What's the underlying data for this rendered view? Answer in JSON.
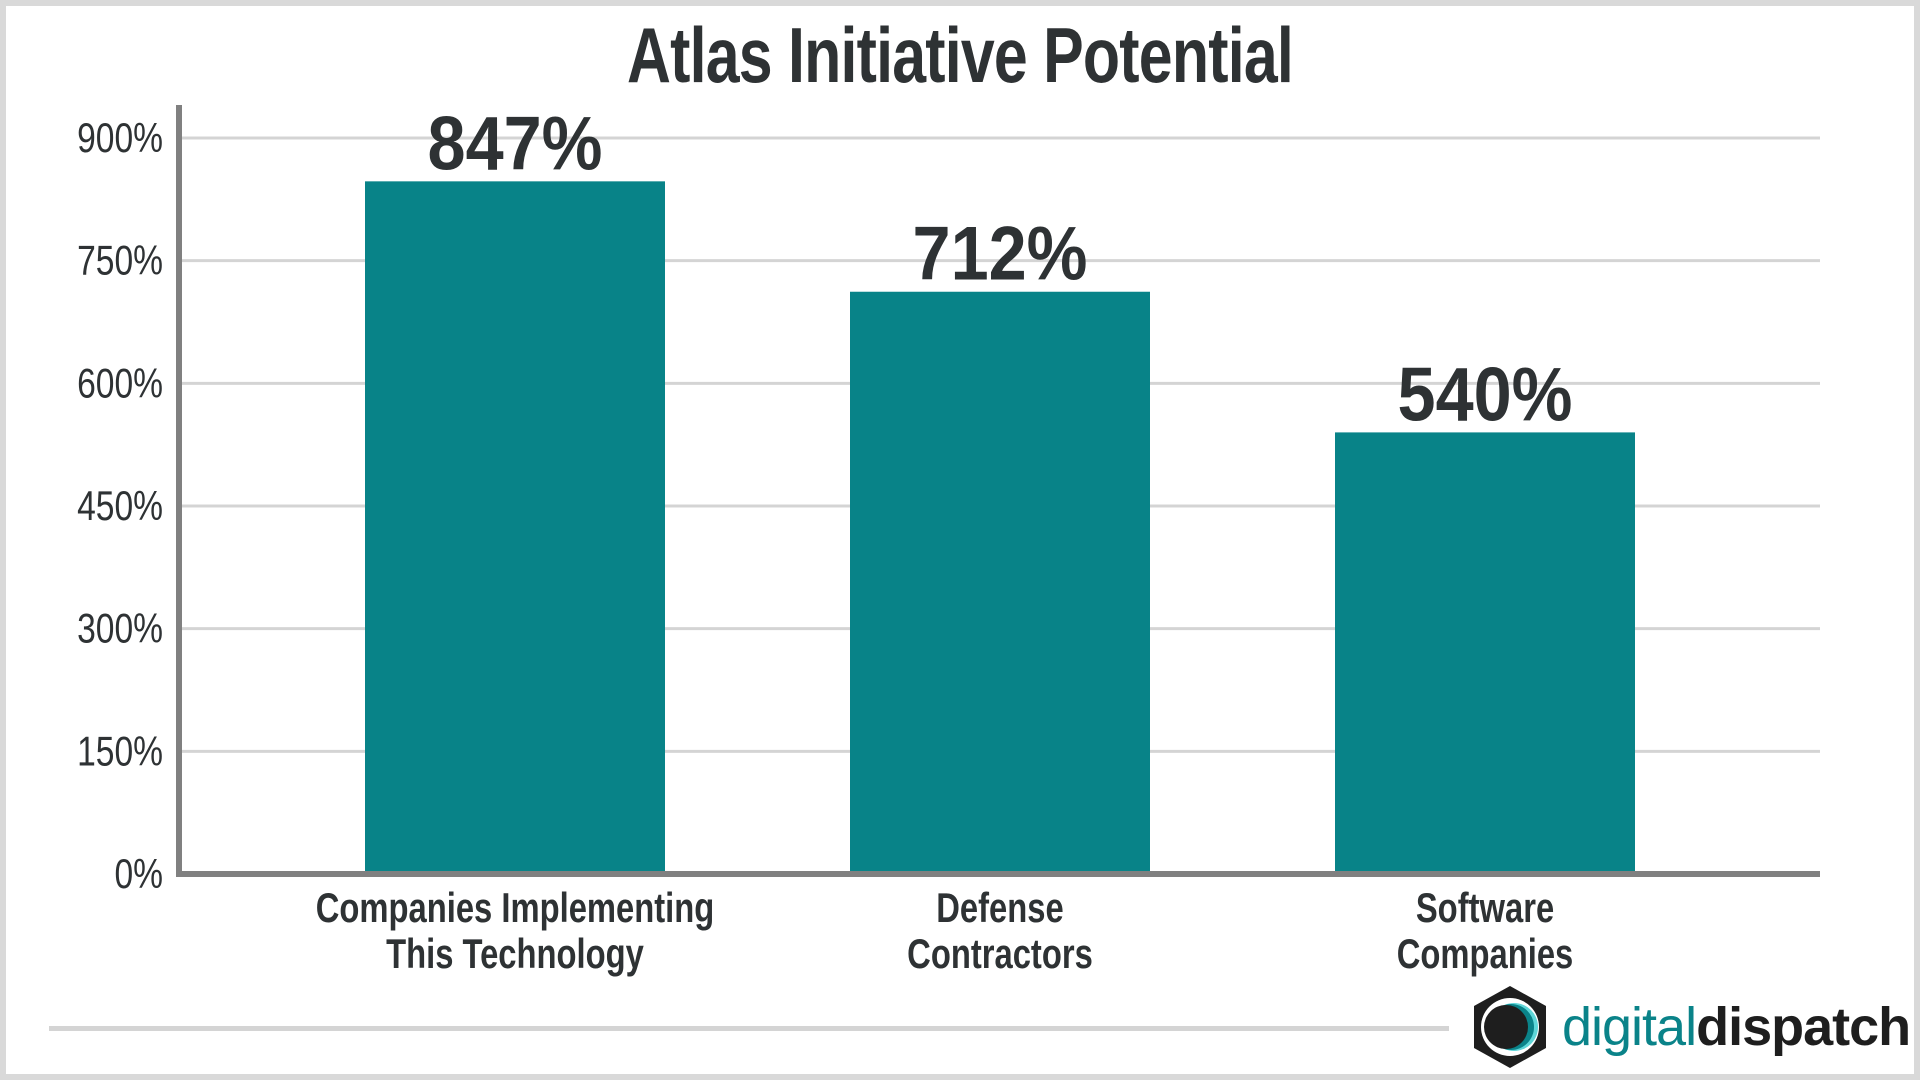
{
  "chart_data": {
    "type": "bar",
    "title": "Atlas Initiative Potential",
    "categories": [
      [
        "Companies Implementing",
        "This Technology"
      ],
      [
        "Defense",
        "Contractors"
      ],
      [
        "Software",
        "Companies"
      ]
    ],
    "values": [
      847,
      712,
      540
    ],
    "value_labels": [
      "847%",
      "712%",
      "540%"
    ],
    "yticks": [
      0,
      150,
      300,
      450,
      600,
      750,
      900
    ],
    "ytick_labels": [
      "0%",
      "150%",
      "300%",
      "450%",
      "600%",
      "750%",
      "900%"
    ],
    "ylim": [
      0,
      900
    ],
    "grid": true,
    "bar_color": "#088388"
  },
  "logo": {
    "part1": "digital",
    "part2": "dispatch",
    "accent": "#0a8389"
  }
}
